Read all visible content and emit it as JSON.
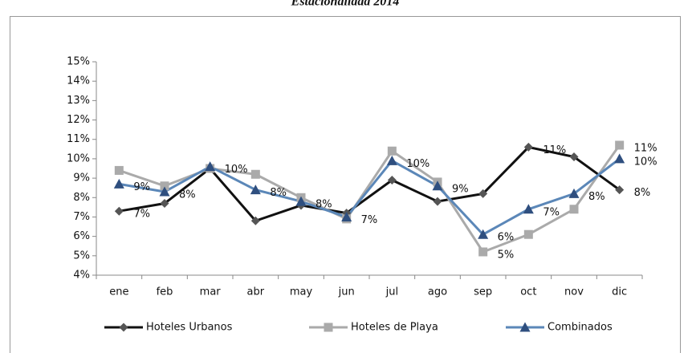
{
  "chart_data": {
    "type": "line",
    "title": "Estacionalidad 2014",
    "categories": [
      "ene",
      "feb",
      "mar",
      "abr",
      "may",
      "jun",
      "jul",
      "ago",
      "sep",
      "oct",
      "nov",
      "dic"
    ],
    "series": [
      {
        "name": "Hoteles Urbanos",
        "color": "#111111",
        "marker": "diamond",
        "values": [
          7.3,
          7.7,
          9.5,
          6.8,
          7.6,
          7.2,
          8.9,
          7.8,
          8.2,
          10.6,
          10.1,
          8.4
        ],
        "value_labels": [
          "7%",
          null,
          null,
          null,
          null,
          null,
          null,
          null,
          null,
          "11%",
          null,
          "8%"
        ]
      },
      {
        "name": "Hoteles de Playa",
        "color": "#aaaaaa",
        "marker": "square",
        "values": [
          9.4,
          8.6,
          9.5,
          9.2,
          8.0,
          6.9,
          10.4,
          8.8,
          5.2,
          6.1,
          7.4,
          10.7
        ],
        "value_labels": [
          null,
          null,
          null,
          null,
          null,
          null,
          null,
          null,
          "5%",
          null,
          null,
          "11%"
        ]
      },
      {
        "name": "Combinados",
        "color": "#5b87b8",
        "marker": "triangle",
        "values": [
          8.7,
          8.3,
          9.6,
          8.4,
          7.8,
          7.0,
          9.9,
          8.6,
          6.1,
          7.4,
          8.2,
          10.0
        ],
        "value_labels": [
          "9%",
          "8%",
          "10%",
          "8%",
          "8%",
          "7%",
          "10%",
          "9%",
          "6%",
          "7%",
          "8%",
          "10%"
        ]
      }
    ],
    "ylim": [
      4,
      15
    ],
    "yticks": [
      {
        "value": 4,
        "label": "4%"
      },
      {
        "value": 5,
        "label": "5%"
      },
      {
        "value": 6,
        "label": "6%"
      },
      {
        "value": 7,
        "label": "7%"
      },
      {
        "value": 8,
        "label": "8%"
      },
      {
        "value": 9,
        "label": "9%"
      },
      {
        "value": 10,
        "label": "10%"
      },
      {
        "value": 11,
        "label": "11%"
      },
      {
        "value": 12,
        "label": "12%"
      },
      {
        "value": 13,
        "label": "13%"
      },
      {
        "value": 14,
        "label": "14%"
      },
      {
        "value": 15,
        "label": "15%"
      }
    ],
    "grid": false,
    "legend": "bottom"
  }
}
